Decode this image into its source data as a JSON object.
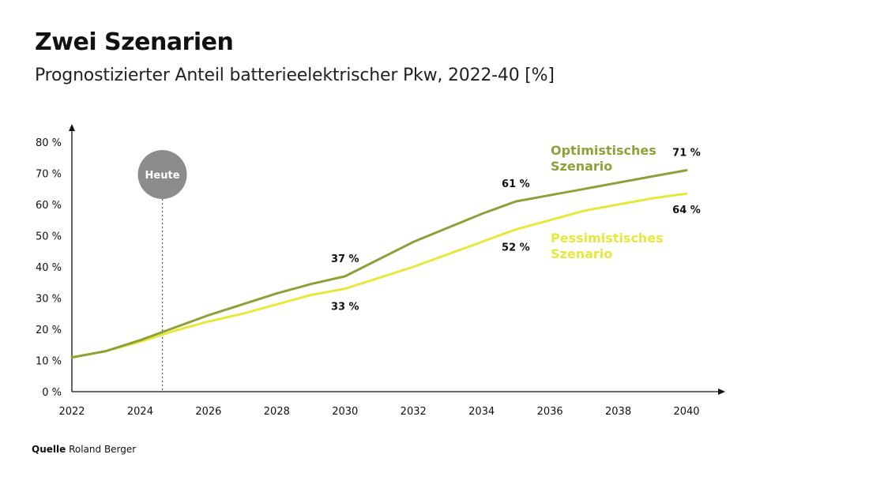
{
  "header": {
    "title": "Zwei Szenarien",
    "subtitle": "Prognostizierter Anteil batterieelektrischer Pkw, 2022-40 [%]"
  },
  "footer": {
    "source_label": "Quelle",
    "source_value": "Roland Berger"
  },
  "marker": {
    "label": "Heute",
    "x": 2024.65,
    "color": "#8c8c8c"
  },
  "chart_data": {
    "type": "line",
    "title": "Zwei Szenarien",
    "subtitle": "Prognostizierter Anteil batterieelektrischer Pkw, 2022-40 [%]",
    "xlabel": "",
    "ylabel": "",
    "xlim": [
      2022,
      2040
    ],
    "ylim": [
      0,
      80
    ],
    "x_ticks": [
      "2022",
      "2024",
      "2026",
      "2028",
      "2030",
      "2032",
      "2034",
      "2036",
      "2038",
      "2040"
    ],
    "y_ticks": [
      "0 %",
      "10 %",
      "20 %",
      "30 %",
      "40 %",
      "50 %",
      "60 %",
      "70 %",
      "80 %"
    ],
    "grid": false,
    "series": [
      {
        "name": "Optimistisches Szenario",
        "name_lines": [
          "Optimistisches",
          "Szenario"
        ],
        "color": "#8fa03a",
        "x": [
          2022,
          2023,
          2024,
          2025,
          2026,
          2027,
          2028,
          2029,
          2030,
          2031,
          2032,
          2033,
          2034,
          2035,
          2036,
          2037,
          2038,
          2039,
          2040
        ],
        "values": [
          11,
          13,
          16.5,
          20.5,
          24.5,
          28,
          31.5,
          34.5,
          37,
          42.5,
          48,
          52.5,
          57,
          61,
          63,
          65,
          67,
          69,
          71
        ],
        "data_labels": [
          {
            "x": 2030,
            "y": 37,
            "text": "37 %",
            "pos": "above"
          },
          {
            "x": 2035,
            "y": 61,
            "text": "61 %",
            "pos": "above"
          },
          {
            "x": 2040,
            "y": 71,
            "text": "71 %",
            "pos": "above"
          }
        ]
      },
      {
        "name": "Pessimistisches Szenario",
        "name_lines": [
          "Pessimistisches",
          "Szenario"
        ],
        "color": "#e6e83a",
        "x": [
          2022,
          2023,
          2024,
          2025,
          2026,
          2027,
          2028,
          2029,
          2030,
          2031,
          2032,
          2033,
          2034,
          2035,
          2036,
          2037,
          2038,
          2039,
          2040
        ],
        "values": [
          11,
          13,
          16,
          19.5,
          22.5,
          25,
          28,
          31,
          33,
          36.5,
          40,
          44,
          48,
          52,
          55,
          58,
          60,
          62,
          63.5
        ],
        "data_labels": [
          {
            "x": 2030,
            "y": 33,
            "text": "33 %",
            "pos": "below"
          },
          {
            "x": 2035,
            "y": 52,
            "text": "52 %",
            "pos": "below"
          },
          {
            "x": 2040,
            "y": 64,
            "text": "64 %",
            "pos": "below"
          }
        ]
      }
    ]
  }
}
